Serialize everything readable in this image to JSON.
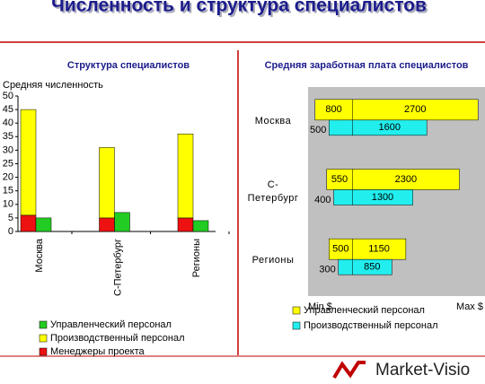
{
  "title": "Численность и структура специалистов",
  "logo": "Market-Visio",
  "chart_data": [
    {
      "type": "bar",
      "title": "Структура специалистов",
      "y_label": "Средняя численность",
      "categories": [
        "Москва",
        "С-Петербург",
        "Регионы"
      ],
      "series": [
        {
          "name": "Управленческий персонал",
          "color": "#22cc22",
          "values": [
            5,
            7,
            4
          ]
        },
        {
          "name": "Производственный персонал",
          "color": "#ffff00",
          "values": [
            39,
            26,
            31
          ]
        },
        {
          "name": "Менеджеры проекта",
          "color": "#ee1111",
          "values": [
            6,
            5,
            5
          ]
        }
      ],
      "ylim": [
        0,
        50
      ],
      "yticks": [
        0,
        5,
        10,
        15,
        20,
        25,
        30,
        35,
        40,
        45,
        50
      ]
    },
    {
      "type": "range-bar",
      "title": "Средняя заработная плата специалистов",
      "categories": [
        "Москва",
        "С-Петербург",
        "Регионы"
      ],
      "series": [
        {
          "name": "Управленческий персонал",
          "color": "#ffff00",
          "min_values": [
            800,
            550,
            500
          ],
          "values": [
            2700,
            2300,
            1150
          ]
        },
        {
          "name": "Производственный персонал",
          "color": "#22eeee",
          "min_values": [
            500,
            400,
            300
          ],
          "values": [
            1600,
            1300,
            850
          ]
        }
      ],
      "xlim": [
        -950,
        2850
      ],
      "xticks": [
        {
          "value": -950,
          "label": "Min $"
        },
        {
          "value": 2850,
          "label": "Max $"
        }
      ]
    }
  ]
}
